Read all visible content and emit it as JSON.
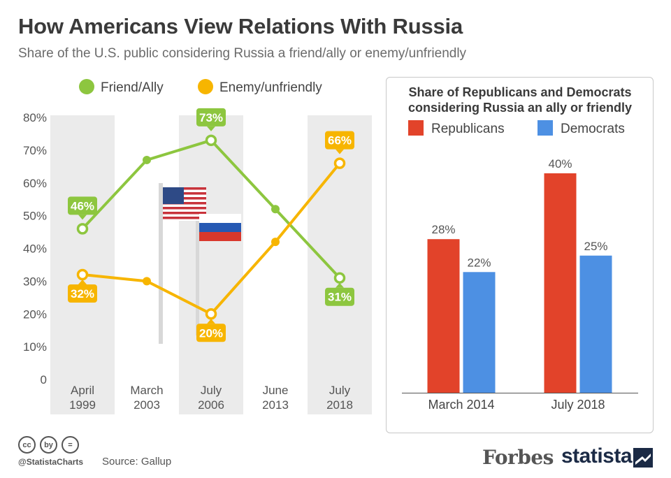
{
  "title": "How Americans View Relations With Russia",
  "subtitle": "Share of the U.S. public considering Russia a friend/ally or enemy/unfriendly",
  "chart_data": [
    {
      "type": "line",
      "categories": [
        "April 1999",
        "March 2003",
        "July 2006",
        "June 2013",
        "July 2018"
      ],
      "category_lines": [
        [
          "April",
          "1999"
        ],
        [
          "March",
          "2003"
        ],
        [
          "July",
          "2006"
        ],
        [
          "June",
          "2013"
        ],
        [
          "July",
          "2018"
        ]
      ],
      "series": [
        {
          "name": "Friend/Ally",
          "color": "#8dc63f",
          "values": [
            46,
            67,
            73,
            52,
            31
          ],
          "labels": [
            "46%",
            null,
            "73%",
            null,
            "31%"
          ],
          "label_pos": [
            "above",
            null,
            "above",
            null,
            "below"
          ]
        },
        {
          "name": "Enemy/unfriendly",
          "color": "#f7b500",
          "values": [
            32,
            30,
            20,
            42,
            66
          ],
          "labels": [
            "32%",
            null,
            "20%",
            null,
            "66%"
          ],
          "label_pos": [
            "below",
            null,
            "below",
            null,
            "above"
          ]
        }
      ],
      "ylim": [
        0,
        80
      ],
      "yticks": [
        0,
        10,
        20,
        30,
        40,
        50,
        60,
        70,
        80
      ],
      "ytick_labels": [
        "0",
        "10%",
        "20%",
        "30%",
        "40%",
        "50%",
        "60%",
        "70%",
        "80%"
      ],
      "legend_position": "top",
      "shaded_categories": [
        0,
        2,
        4
      ]
    },
    {
      "type": "bar",
      "title": "Share of Republicans and Democrats considering Russia an ally or friendly",
      "title_lines": [
        "Share of Republicans and Democrats",
        "considering Russia an ally or friendly"
      ],
      "categories": [
        "March 2014",
        "July 2018"
      ],
      "series": [
        {
          "name": "Republicans",
          "color": "#e2432a",
          "values": [
            28,
            40
          ],
          "labels": [
            "28%",
            "40%"
          ]
        },
        {
          "name": "Democrats",
          "color": "#4d90e3",
          "values": [
            22,
            25
          ],
          "labels": [
            "22%",
            "25%"
          ]
        }
      ],
      "legend_position": "top"
    }
  ],
  "footer": {
    "handle": "@StatistaCharts",
    "source": "Source: Gallup",
    "icons": [
      "cc",
      "by",
      "="
    ],
    "brand1": "Forbes",
    "brand2": "statista"
  }
}
